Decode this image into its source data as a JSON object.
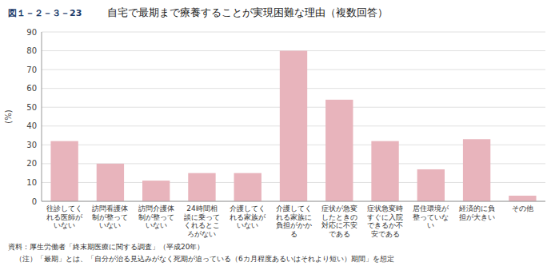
{
  "chart_data": {
    "type": "bar",
    "title": "自宅で最期まで療養することが実現困難な理由（複数回答）",
    "annotations": [
      "図１－２－３－23",
      "資料：厚生労働者「終末期医療に関する調査」（平成20年）",
      "　（注）「最期」とは、「自分が治る見込みがなく死期が迫っている（6カ月程度あるいはそれより短い）期間」を想定"
    ],
    "y_label": "(%)",
    "categories": [
      "往診してく\nれる医師が\nいない",
      "訪問看護体\n制が整って\nいない",
      "訪問介護体\n制が整って\nいない",
      "24時間相\n談に乗って\nくれるとこ\nろがない",
      "介護してく\nれる家族が\nいない",
      "介護してく\nれる家族に\n負担がかか\nる",
      "症状が急変\nしたときの\n対応に不安\nである",
      "症状急変時\nすぐに入院\nできるか不\n安である",
      "居住環境が\n整っていな\nい",
      "経済的に負\n担が大きい",
      "その他"
    ],
    "values": [
      32,
      20,
      11,
      15,
      15,
      80,
      54,
      32,
      17,
      33,
      3
    ],
    "color": "#e8b4bc",
    "ylim": [
      0,
      90
    ],
    "yticks": [
      0,
      10,
      20,
      30,
      40,
      50,
      60,
      70,
      80,
      90
    ],
    "grid": true
  }
}
